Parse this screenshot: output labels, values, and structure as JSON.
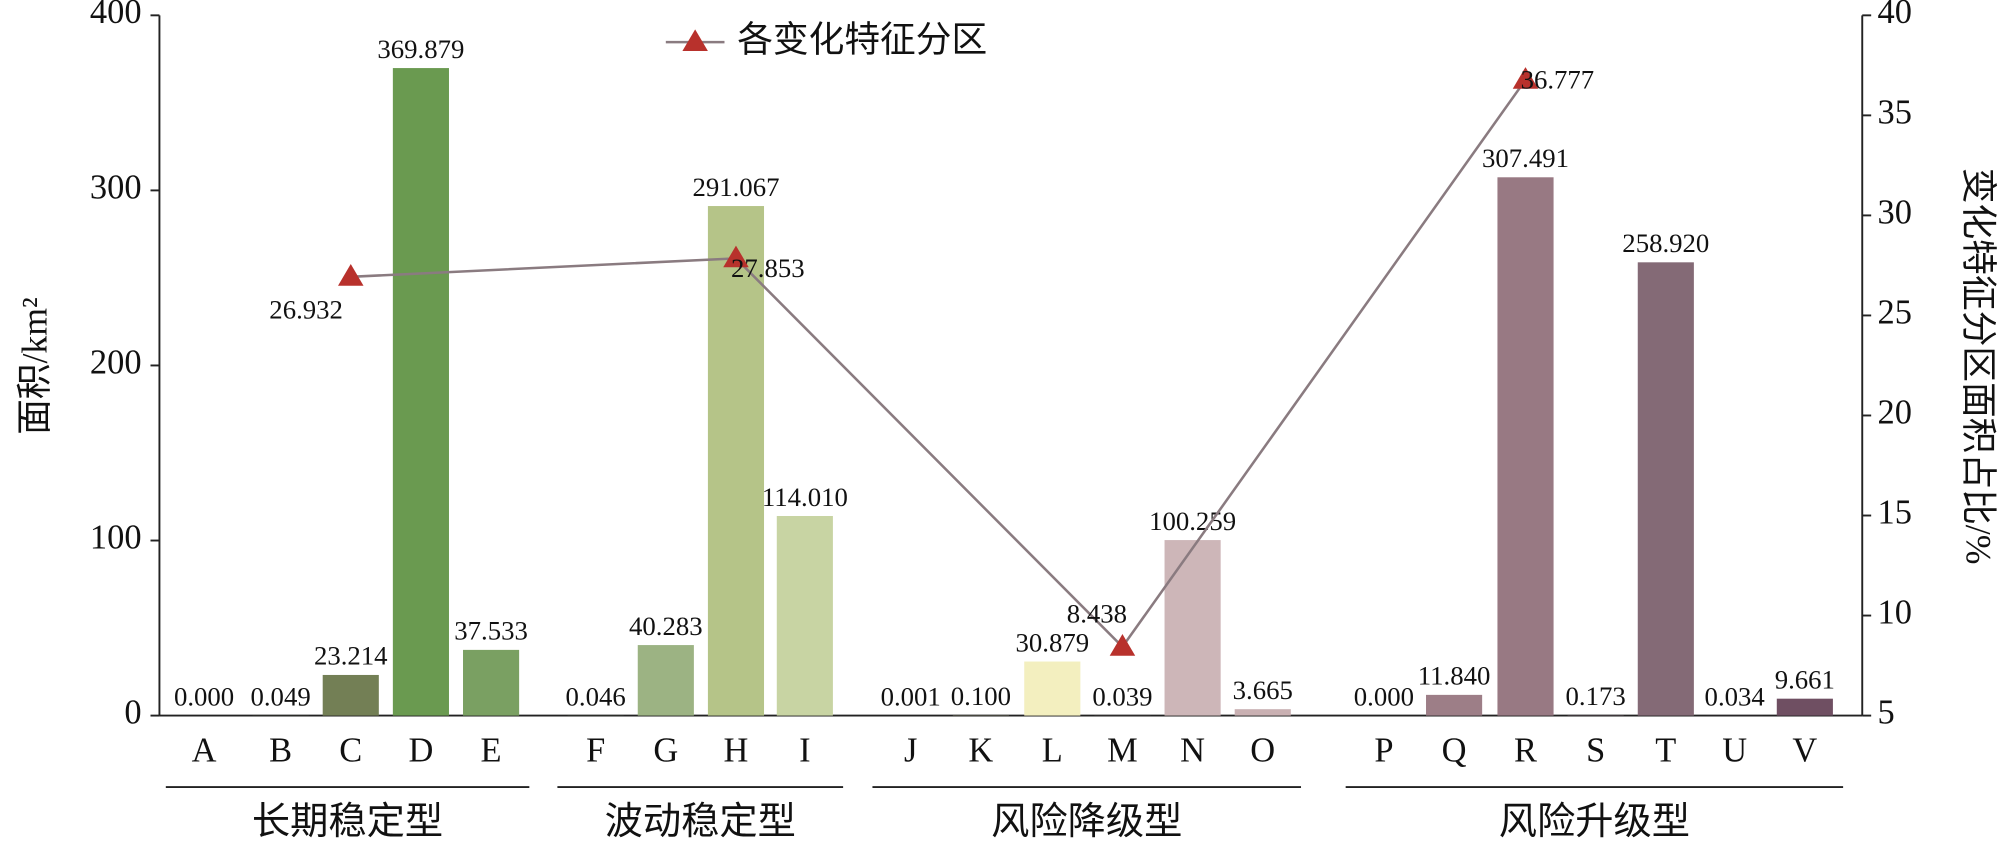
{
  "chart_data": {
    "type": "bar",
    "y_label": "面积/km²",
    "y2_label": "变化特征分区面积占比/%",
    "categories": [
      "A",
      "B",
      "C",
      "D",
      "E",
      "F",
      "G",
      "H",
      "I",
      "J",
      "K",
      "L",
      "M",
      "N",
      "O",
      "P",
      "Q",
      "R",
      "S",
      "T",
      "U",
      "V"
    ],
    "groups": [
      {
        "name": "长期稳定型",
        "categories": [
          "A",
          "B",
          "C",
          "D",
          "E"
        ]
      },
      {
        "name": "波动稳定型",
        "categories": [
          "F",
          "G",
          "H",
          "I"
        ]
      },
      {
        "name": "风险降级型",
        "categories": [
          "J",
          "K",
          "L",
          "M",
          "N",
          "O"
        ]
      },
      {
        "name": "风险升级型",
        "categories": [
          "P",
          "Q",
          "R",
          "S",
          "T",
          "U",
          "V"
        ]
      }
    ],
    "values": [
      0,
      0.049,
      23.214,
      369.879,
      37.533,
      0.046,
      40.283,
      291.067,
      114.01,
      0.001,
      0.1,
      30.879,
      0.039,
      100.259,
      3.665,
      0,
      11.84,
      307.491,
      0.173,
      258.92,
      0.034,
      9.661
    ],
    "value_labels": [
      "0.000",
      "0.049",
      "23.214",
      "369.879",
      "37.533",
      "0.046",
      "40.283",
      "291.067",
      "114.010",
      "0.001",
      "0.100",
      "30.879",
      "0.039",
      "100.259",
      "3.665",
      "0.000",
      "11.840",
      "307.491",
      "0.173",
      "258.920",
      "0.034",
      "9.661"
    ],
    "colors": [
      "#7a8a5c",
      "#7a8a5c",
      "#737f55",
      "#6a9a50",
      "#7aa062",
      "#9cb383",
      "#9cb383",
      "#b5c488",
      "#c8d4a3",
      "#f3efbf",
      "#f3efbf",
      "#f3efbf",
      "#cdb6b8",
      "#cdb6b8",
      "#c9b0b2",
      "#9d7e87",
      "#9d7e87",
      "#987983",
      "#846a76",
      "#846a76",
      "#6f4f62",
      "#6f4f62"
    ],
    "line": {
      "name": "各变化特征分区",
      "color": "#b8312c",
      "line_color": "#8a7b80",
      "axis": "y2",
      "x": [
        "C",
        "H",
        "M",
        "R"
      ],
      "values": [
        26.932,
        27.853,
        8.438,
        36.777
      ]
    },
    "ylim": [
      0,
      400
    ],
    "yticks": [
      0,
      100,
      200,
      300,
      400
    ],
    "y2lim": [
      5,
      40
    ],
    "y2ticks": [
      5,
      10,
      15,
      20,
      25,
      30,
      35,
      40
    ],
    "legend": "top"
  }
}
